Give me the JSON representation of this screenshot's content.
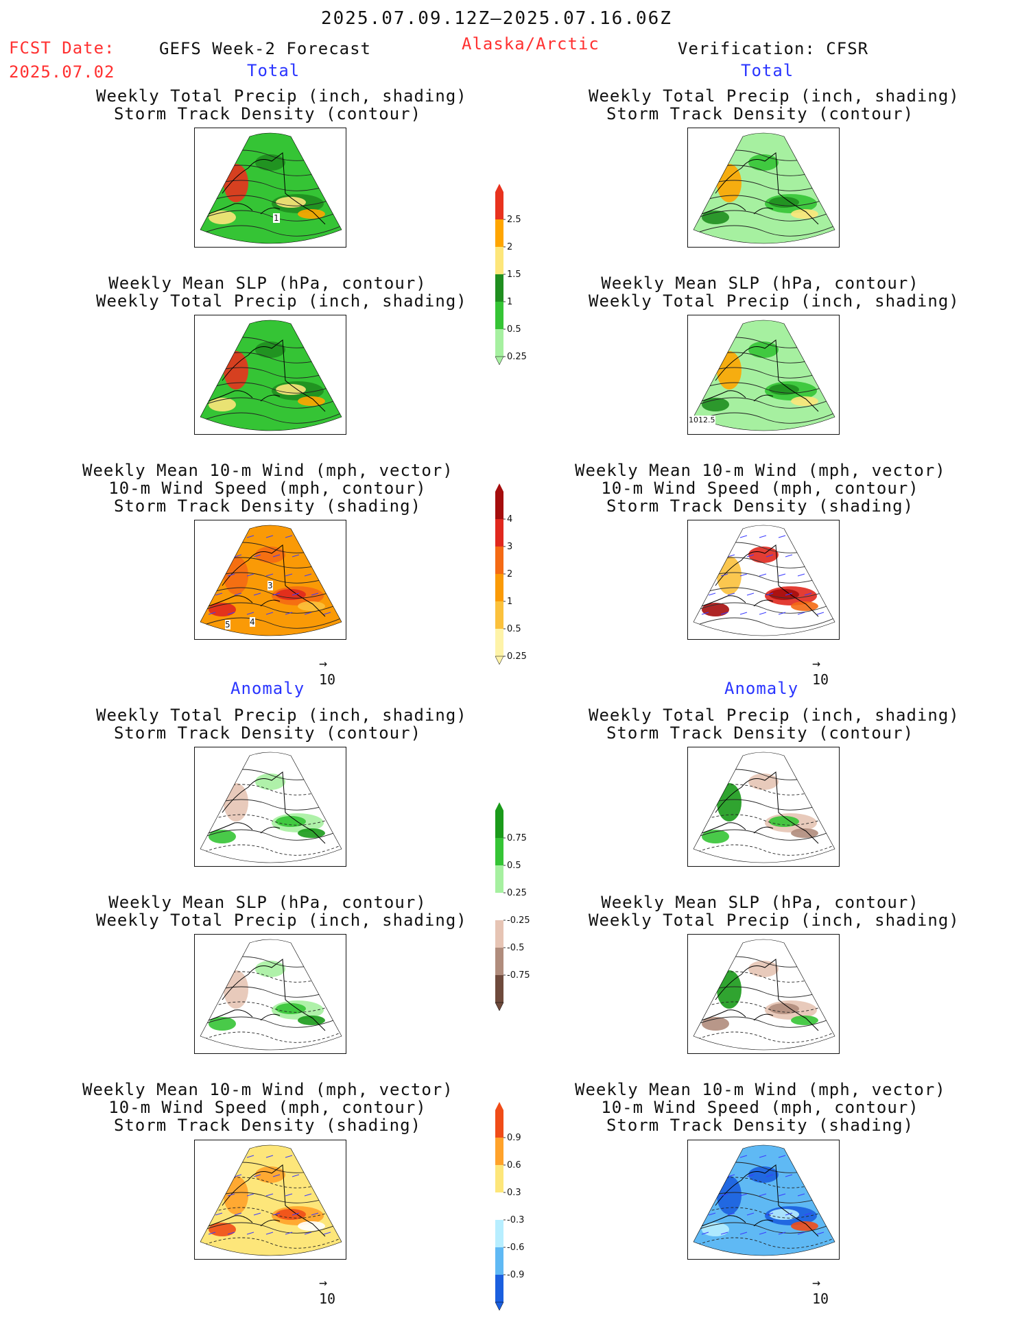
{
  "header": {
    "date_range": "2025.07.09.12Z–2025.07.16.06Z",
    "fcst_label": "FCST Date:",
    "fcst_date": "2025.07.02",
    "model": "GEFS Week-2 Forecast",
    "region": "Alaska/Arctic",
    "verification": "Verification: CFSR"
  },
  "sections": {
    "total_left": "Total",
    "total_right": "Total",
    "anomaly_left": "Anomaly",
    "anomaly_right": "Anomaly"
  },
  "titles": {
    "precip_track": [
      "Weekly Total Precip (inch, shading)",
      "Storm Track Density (contour)"
    ],
    "slp_precip": [
      "Weekly Mean SLP (hPa, contour)",
      "Weekly Total Precip (inch, shading)"
    ],
    "wind_track": [
      "Weekly Mean 10-m Wind (mph, vector)",
      "10-m Wind Speed (mph, contour)",
      "Storm Track Density (shading)"
    ]
  },
  "panel_labels": {
    "fcst_precip_track_contour": "1",
    "cfsr_slp_contour": "1012.5",
    "fcst_wind_track_contours": [
      "3",
      "4",
      "5"
    ]
  },
  "reference_vector": "10",
  "colorbars": {
    "precip_total": {
      "labels": [
        "2.5",
        "2",
        "1.5",
        "1",
        "0.5",
        "0.25"
      ],
      "colors": [
        "#e8321e",
        "#ffa500",
        "#fde67a",
        "#1f8e1f",
        "#35c435",
        "#a6f0a0"
      ]
    },
    "track_total": {
      "labels": [
        "4",
        "3",
        "2",
        "1",
        "0.5",
        "0.25"
      ],
      "colors": [
        "#a50d0d",
        "#e0281e",
        "#f46a14",
        "#fa9a06",
        "#fbc13c",
        "#fef3a8"
      ]
    },
    "precip_anom": {
      "labels": [
        "0.75",
        "0.5",
        "0.25",
        "-0.25",
        "-0.5",
        "-0.75"
      ],
      "colors": [
        "#1a9a1a",
        "#35c435",
        "#a6f0a0",
        "#ffffff",
        "#e6c4b4",
        "#b08c7c",
        "#6e4a3c"
      ]
    },
    "track_anom": {
      "labels": [
        "0.9",
        "0.6",
        "0.3",
        "-0.3",
        "-0.6",
        "-0.9"
      ],
      "colors": [
        "#f04c18",
        "#ffa22a",
        "#fde67a",
        "#ffffff",
        "#b7eeff",
        "#5fb9f4",
        "#1b5fdf"
      ]
    }
  },
  "panel_names": [
    "fcst-total-precip-track",
    "cfsr-total-precip-track",
    "fcst-total-slp-precip",
    "cfsr-total-slp-precip",
    "fcst-total-wind-track",
    "cfsr-total-wind-track",
    "fcst-anom-precip-track",
    "cfsr-anom-precip-track",
    "fcst-anom-slp-precip",
    "cfsr-anom-slp-precip",
    "fcst-anom-wind-track",
    "cfsr-anom-wind-track"
  ]
}
